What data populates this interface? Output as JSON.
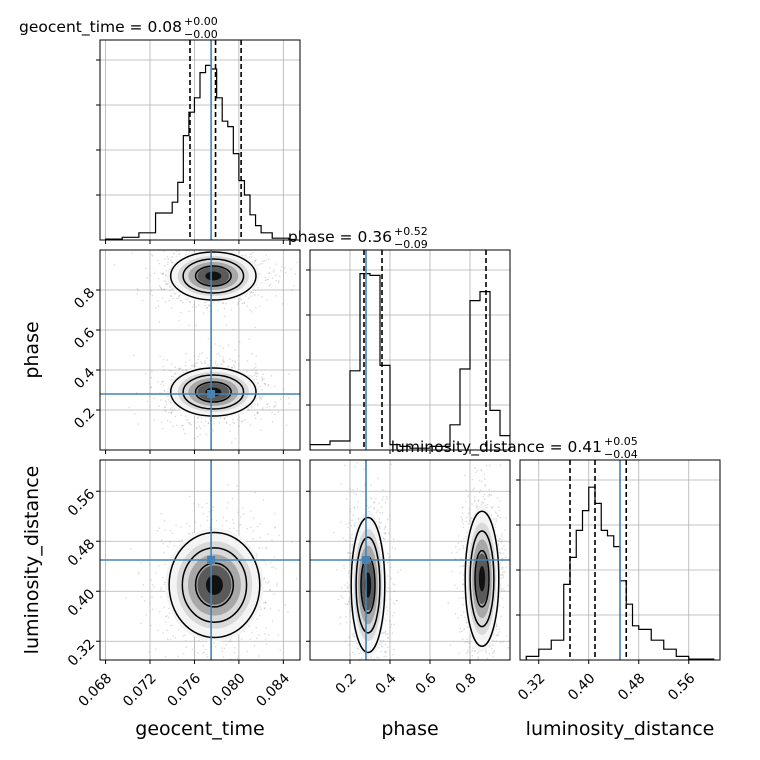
{
  "chart_data": {
    "type": "corner",
    "parameters": [
      "geocent_time",
      "phase",
      "luminosity_distance"
    ],
    "diagonal_titles": [
      {
        "parameter": "geocent_time",
        "label": "geocent_time = 0.08",
        "plus": "+0.00",
        "minus": "−0.00"
      },
      {
        "parameter": "phase",
        "label": "phase = 0.36",
        "plus": "+0.52",
        "minus": "−0.09"
      },
      {
        "parameter": "luminosity_distance",
        "label": "luminosity_distance = 0.41",
        "plus": "+0.05",
        "minus": "−0.04"
      }
    ],
    "axis_labels": {
      "x": [
        "geocent_time",
        "phase",
        "luminosity_distance"
      ],
      "y": [
        "phase",
        "luminosity_distance"
      ]
    },
    "ranges": {
      "geocent_time": [
        0.0675,
        0.0855
      ],
      "phase": [
        0.0,
        1.0
      ],
      "luminosity_distance": [
        0.29,
        0.61
      ]
    },
    "ticks": {
      "geocent_time": [
        0.068,
        0.072,
        0.076,
        0.08,
        0.084
      ],
      "phase_x": [
        0.2,
        0.4,
        0.6,
        0.8
      ],
      "phase_y": [
        0.2,
        0.4,
        0.6,
        0.8
      ],
      "luminosity_distance": [
        0.32,
        0.4,
        0.48,
        0.56
      ]
    },
    "tick_labels": {
      "geocent_time": [
        "0.068",
        "0.072",
        "0.076",
        "0.080",
        "0.084"
      ],
      "phase_x": [
        "0.2",
        "0.4",
        "0.6",
        "0.8"
      ],
      "phase_y": [
        "0.2",
        "0.4",
        "0.6",
        "0.8"
      ],
      "luminosity_distance": [
        "0.32",
        "0.40",
        "0.48",
        "0.56"
      ]
    },
    "truths": {
      "geocent_time": 0.0775,
      "phase": 0.28,
      "luminosity_distance": 0.45
    },
    "quantiles": {
      "geocent_time": [
        0.0756,
        0.0779,
        0.0802
      ],
      "phase": [
        0.27,
        0.36,
        0.88
      ],
      "luminosity_distance": [
        0.37,
        0.41,
        0.46
      ]
    },
    "histograms": {
      "geocent_time": {
        "edges": [
          0.068,
          0.0695,
          0.071,
          0.0725,
          0.074,
          0.0745,
          0.075,
          0.0755,
          0.076,
          0.0765,
          0.077,
          0.0775,
          0.078,
          0.0785,
          0.079,
          0.0795,
          0.08,
          0.0805,
          0.081,
          0.0815,
          0.082,
          0.083,
          0.0845,
          0.085
        ],
        "counts": [
          0.005,
          0.015,
          0.04,
          0.15,
          0.21,
          0.32,
          0.58,
          0.71,
          0.79,
          0.93,
          0.97,
          0.95,
          0.79,
          0.66,
          0.63,
          0.48,
          0.33,
          0.25,
          0.14,
          0.08,
          0.04,
          0.01,
          0.003
        ]
      },
      "phase": {
        "edges": [
          0.0,
          0.1,
          0.2,
          0.25,
          0.3,
          0.35,
          0.4,
          0.45,
          0.5,
          0.6,
          0.7,
          0.75,
          0.8,
          0.85,
          0.9,
          0.95,
          1.0
        ],
        "counts": [
          0.03,
          0.05,
          0.44,
          0.98,
          0.97,
          0.47,
          0.03,
          0.02,
          0.01,
          0.02,
          0.14,
          0.45,
          0.83,
          0.88,
          0.22,
          0.08
        ]
      },
      "luminosity_distance": {
        "edges": [
          0.3,
          0.32,
          0.34,
          0.36,
          0.37,
          0.38,
          0.39,
          0.4,
          0.41,
          0.42,
          0.43,
          0.44,
          0.45,
          0.46,
          0.47,
          0.48,
          0.5,
          0.52,
          0.54,
          0.56,
          0.6
        ],
        "counts": [
          0.02,
          0.06,
          0.11,
          0.42,
          0.57,
          0.72,
          0.83,
          0.96,
          0.87,
          0.72,
          0.69,
          0.63,
          0.44,
          0.31,
          0.19,
          0.17,
          0.11,
          0.06,
          0.02,
          0.005
        ]
      }
    },
    "density_modes": [
      {
        "x": "geocent_time",
        "y": "phase",
        "centers": [
          [
            0.0777,
            0.87
          ],
          [
            0.0777,
            0.29
          ]
        ]
      },
      {
        "x": "geocent_time",
        "y": "luminosity_distance",
        "centers": [
          [
            0.0778,
            0.41
          ]
        ]
      },
      {
        "x": "phase",
        "y": "luminosity_distance",
        "centers": [
          [
            0.29,
            0.41
          ],
          [
            0.86,
            0.42
          ]
        ]
      }
    ],
    "grid": true
  }
}
